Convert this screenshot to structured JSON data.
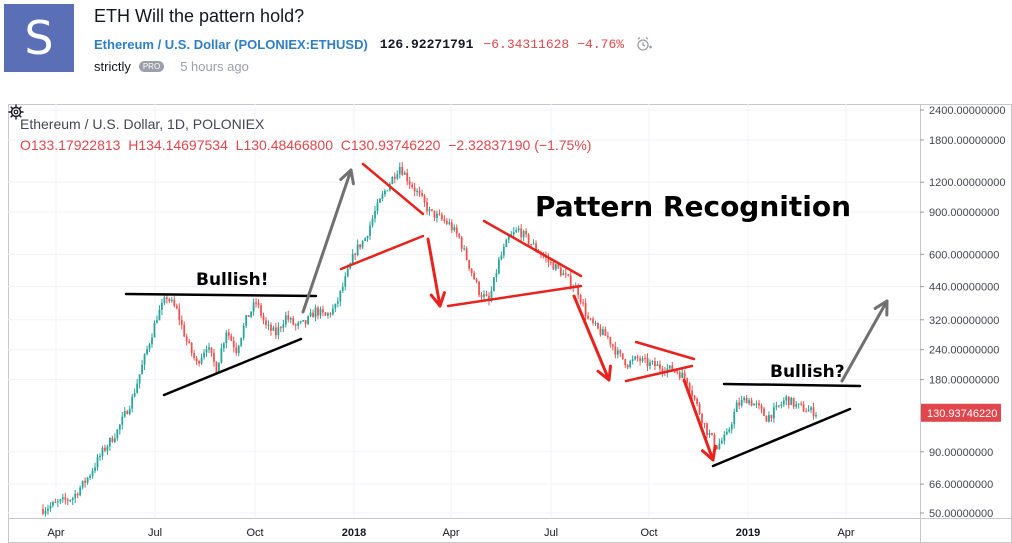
{
  "header": {
    "avatar_letter": "S",
    "title": "ETH Will the pattern hold?",
    "symbol_name": "Ethereum / U.S. Dollar",
    "symbol_ticker": "(POLONIEX:ETHUSD)",
    "price": "126.92271791",
    "change": "−6.34311628",
    "change_pct": "−4.76%",
    "author": "strictly",
    "badge": "PRO",
    "time_ago": "5 hours ago"
  },
  "legend": {
    "line1": "Ethereum / U.S. Dollar, 1D, POLONIEX",
    "open": "O133.17922813",
    "high": "H134.14697534",
    "low": "L130.48466800",
    "close": "C130.93746220",
    "change": "−2.32837190 (−1.75%)"
  },
  "annotations": {
    "pattern_title": "Pattern Recognition",
    "bullish_left": "Bullish!",
    "bullish_right": "Bullish?"
  },
  "chart_data": {
    "type": "candlestick",
    "y_scale": "log",
    "y_ticks": [
      {
        "value": 2400,
        "label": "2400.00000000"
      },
      {
        "value": 1800,
        "label": "1800.00000000"
      },
      {
        "value": 1200,
        "label": "1200.00000000"
      },
      {
        "value": 900,
        "label": "900.00000000"
      },
      {
        "value": 600,
        "label": "600.00000000"
      },
      {
        "value": 440,
        "label": "440.00000000"
      },
      {
        "value": 320,
        "label": "320.00000000"
      },
      {
        "value": 240,
        "label": "240.00000000"
      },
      {
        "value": 180,
        "label": "180.00000000"
      },
      {
        "value": 90,
        "label": "90.00000000"
      },
      {
        "value": 66,
        "label": "66.00000000"
      },
      {
        "value": 50,
        "label": "50.00000000"
      }
    ],
    "x_ticks": [
      "Apr",
      "Jul",
      "Oct",
      "2018",
      "Apr",
      "Jul",
      "Oct",
      "2019",
      "Apr"
    ],
    "last_price_label": "130.93746220",
    "last_price": 130.94,
    "price_path": [
      [
        0,
        52
      ],
      [
        3,
        55
      ],
      [
        6,
        58
      ],
      [
        9,
        70
      ],
      [
        12,
        90
      ],
      [
        15,
        110
      ],
      [
        18,
        150
      ],
      [
        21,
        240
      ],
      [
        23,
        330
      ],
      [
        25,
        400
      ],
      [
        27,
        350
      ],
      [
        29,
        260
      ],
      [
        31,
        210
      ],
      [
        33,
        250
      ],
      [
        35,
        200
      ],
      [
        37,
        290
      ],
      [
        39,
        240
      ],
      [
        41,
        320
      ],
      [
        43,
        380
      ],
      [
        45,
        300
      ],
      [
        47,
        280
      ],
      [
        49,
        330
      ],
      [
        51,
        300
      ],
      [
        53,
        310
      ],
      [
        55,
        350
      ],
      [
        57,
        330
      ],
      [
        59,
        360
      ],
      [
        61,
        470
      ],
      [
        63,
        620
      ],
      [
        65,
        700
      ],
      [
        67,
        900
      ],
      [
        69,
        1100
      ],
      [
        71,
        1300
      ],
      [
        72,
        1400
      ],
      [
        74,
        1200
      ],
      [
        76,
        1050
      ],
      [
        78,
        900
      ],
      [
        80,
        850
      ],
      [
        82,
        800
      ],
      [
        84,
        700
      ],
      [
        86,
        540
      ],
      [
        88,
        420
      ],
      [
        90,
        380
      ],
      [
        92,
        560
      ],
      [
        94,
        700
      ],
      [
        96,
        760
      ],
      [
        98,
        680
      ],
      [
        100,
        620
      ],
      [
        102,
        560
      ],
      [
        104,
        520
      ],
      [
        106,
        470
      ],
      [
        108,
        420
      ],
      [
        110,
        320
      ],
      [
        112,
        290
      ],
      [
        114,
        270
      ],
      [
        116,
        230
      ],
      [
        118,
        210
      ],
      [
        120,
        220
      ],
      [
        122,
        210
      ],
      [
        124,
        205
      ],
      [
        126,
        200
      ],
      [
        128,
        195
      ],
      [
        130,
        180
      ],
      [
        132,
        140
      ],
      [
        134,
        110
      ],
      [
        136,
        95
      ],
      [
        138,
        105
      ],
      [
        140,
        140
      ],
      [
        142,
        150
      ],
      [
        144,
        140
      ],
      [
        146,
        125
      ],
      [
        148,
        135
      ],
      [
        150,
        150
      ],
      [
        152,
        140
      ],
      [
        154,
        135
      ],
      [
        156,
        131
      ]
    ]
  },
  "colors": {
    "up": "#26a69a",
    "down": "#ef5350",
    "red_markup": "#e8231e",
    "black_markup": "#000000",
    "gray_arrow": "#707070",
    "price_label_bg": "#e0474c"
  },
  "icons": {
    "alarm": "alarm-clock-icon",
    "settings": "gear-icon"
  }
}
